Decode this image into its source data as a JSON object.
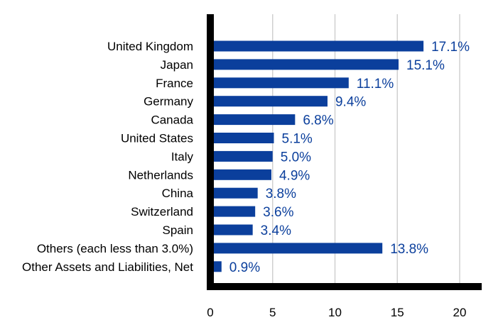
{
  "chart_data": {
    "type": "bar",
    "orientation": "horizontal",
    "categories": [
      "United Kingdom",
      "Japan",
      "France",
      "Germany",
      "Canada",
      "United States",
      "Italy",
      "Netherlands",
      "China",
      "Switzerland",
      "Spain",
      "Others (each less than 3.0%)",
      "Other Assets and Liabilities, Net"
    ],
    "values": [
      17.1,
      15.1,
      11.1,
      9.4,
      6.8,
      5.1,
      5.0,
      4.9,
      3.8,
      3.6,
      3.4,
      13.8,
      0.9
    ],
    "data_labels": [
      "17.1%",
      "15.1%",
      "11.1%",
      "9.4%",
      "6.8%",
      "5.1%",
      "5.0%",
      "4.9%",
      "3.8%",
      "3.6%",
      "3.4%",
      "13.8%",
      "0.9%"
    ],
    "xticks": [
      "0",
      "5",
      "10",
      "15",
      "20"
    ],
    "xlim": [
      0,
      22
    ],
    "grid": "vertical",
    "legend": "none",
    "bar_color": "#0B3F9C",
    "label_color": "#0B3F9C"
  }
}
